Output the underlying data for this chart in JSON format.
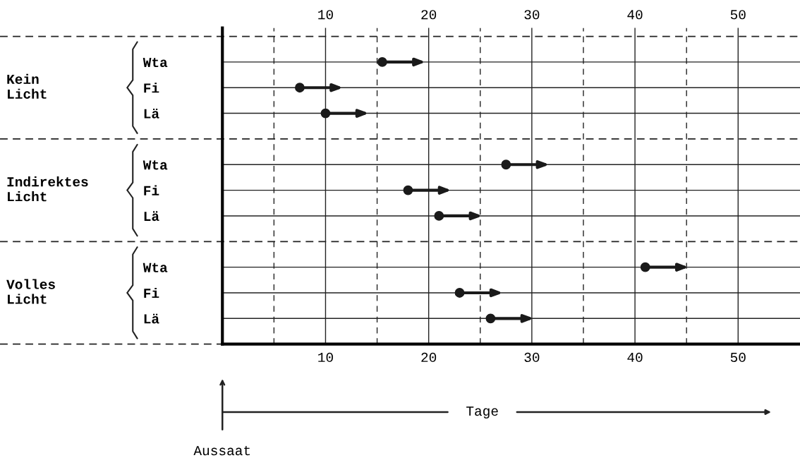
{
  "chart_data": {
    "type": "scatter",
    "orientation": "horizontal",
    "xlabel": "Tage",
    "categories": [
      "Wta",
      "Fi",
      "Lä",
      "Wta",
      "Fi",
      "Lä",
      "Wta",
      "Fi",
      "Lä"
    ],
    "values": [
      15.5,
      7.5,
      10,
      27.5,
      18,
      21,
      41,
      23,
      26
    ],
    "color": "#1a1a1a",
    "marker": "circle",
    "grid": true,
    "xlim": [
      0,
      56
    ],
    "xticks": [
      {
        "value": 5,
        "label": null
      },
      10,
      {
        "value": 15,
        "label": null
      },
      20,
      {
        "value": 25,
        "label": null
      },
      30,
      {
        "value": 35,
        "label": null
      },
      40,
      {
        "value": 45,
        "label": null
      },
      50
    ],
    "x2lim": [
      0,
      56
    ],
    "x2ticks": [
      10,
      20,
      30,
      40,
      50
    ],
    "annotations": [
      "Kein\nLicht",
      "Indirektes\nLicht",
      "Volles\nLicht",
      "Aussaat"
    ]
  }
}
